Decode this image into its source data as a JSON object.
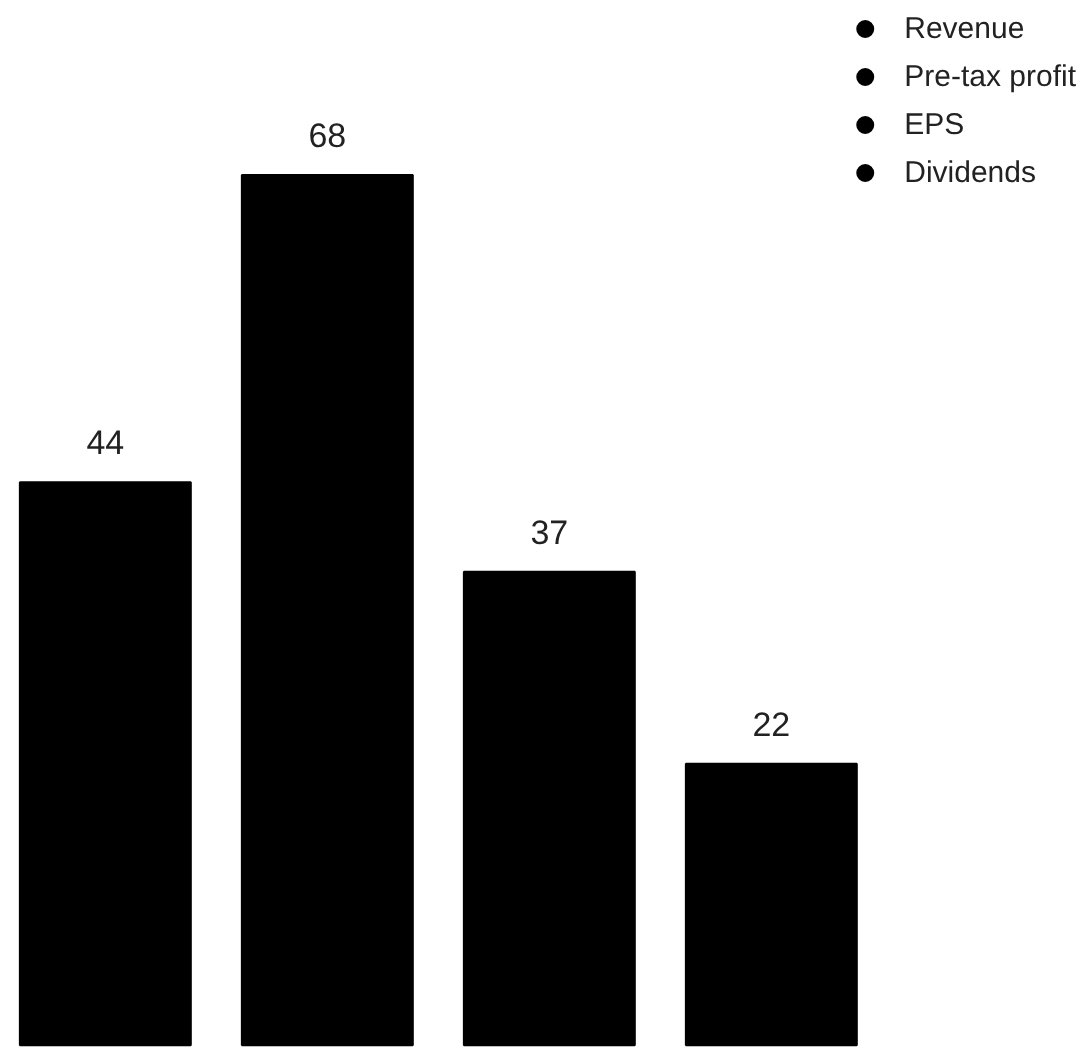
{
  "chart_data": {
    "type": "bar",
    "categories": [
      null,
      null,
      null,
      null
    ],
    "series": [
      {
        "name": "Revenue",
        "color": "#000000",
        "values": [
          44,
          null,
          null,
          null
        ]
      },
      {
        "name": "Pre-tax profit",
        "color": "#000000",
        "values": [
          null,
          68,
          null,
          null
        ]
      },
      {
        "name": "EPS",
        "color": "#000000",
        "values": [
          null,
          null,
          37,
          null
        ]
      },
      {
        "name": "Dividends",
        "color": "#000000",
        "values": [
          null,
          null,
          null,
          22
        ]
      }
    ],
    "stacked": true,
    "data_labels": true,
    "legend": "top right",
    "tick_labels": false
  }
}
